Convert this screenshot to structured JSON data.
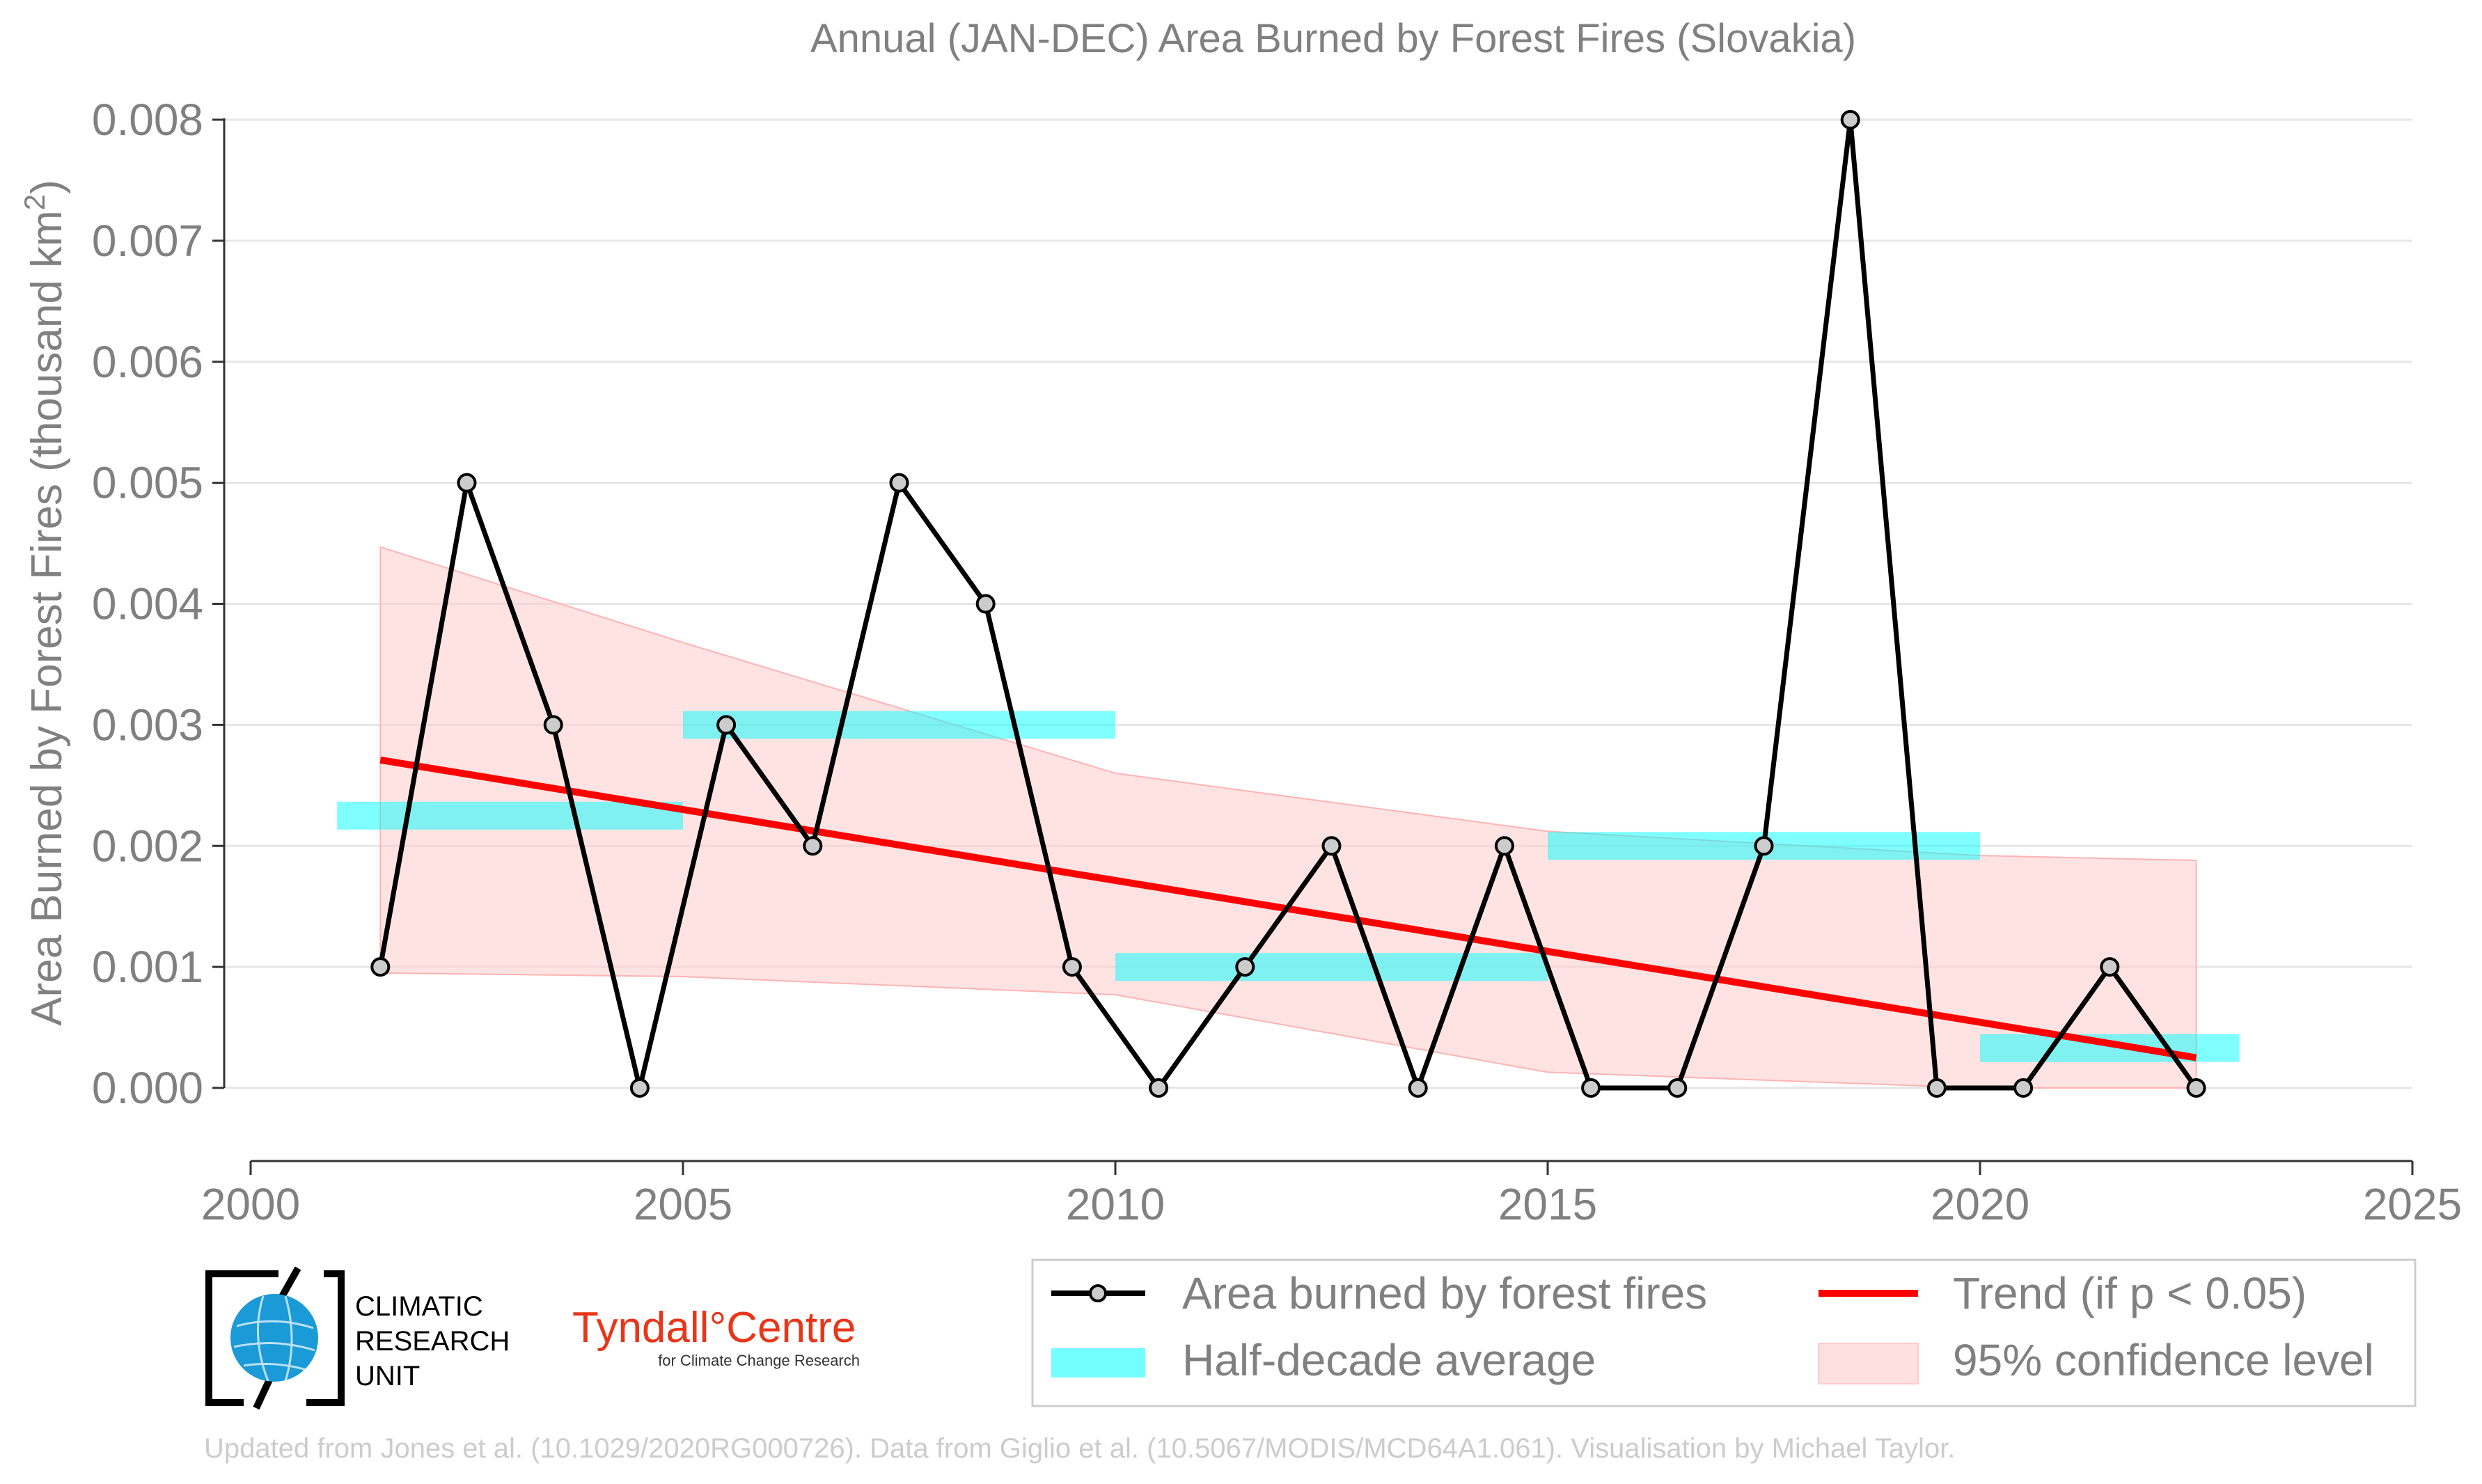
{
  "chart_data": {
    "type": "line",
    "title": "Annual (JAN-DEC) Area Burned by Forest Fires (Slovakia)",
    "ylabel_main": "Area Burned by Forest Fires (thousand km",
    "ylabel_sup": "2",
    "ylabel_end": ")",
    "xlim": [
      2000,
      2025
    ],
    "ylim": [
      0,
      0.008
    ],
    "x_ticks": [
      2000,
      2005,
      2010,
      2015,
      2020,
      2025
    ],
    "x_tick_labels": [
      "2000",
      "2005",
      "2010",
      "2015",
      "2020",
      "2025"
    ],
    "y_ticks": [
      0,
      0.001,
      0.002,
      0.003,
      0.004,
      0.005,
      0.006,
      0.007,
      0.008
    ],
    "y_tick_labels": [
      "0.000",
      "0.001",
      "0.002",
      "0.003",
      "0.004",
      "0.005",
      "0.006",
      "0.007",
      "0.008"
    ],
    "grid": "horizontal",
    "series": [
      {
        "name": "Area burned by forest fires",
        "color": "#000000",
        "marker_fill": "#cccccc",
        "x": [
          2001.5,
          2002.5,
          2003.5,
          2004.5,
          2005.5,
          2006.5,
          2007.5,
          2008.5,
          2009.5,
          2010.5,
          2011.5,
          2012.5,
          2013.5,
          2014.5,
          2015.5,
          2016.5,
          2017.5,
          2018.5,
          2019.5,
          2020.5,
          2021.5,
          2022.5
        ],
        "y": [
          0.001,
          0.005,
          0.003,
          0.0,
          0.003,
          0.002,
          0.005,
          0.004,
          0.001,
          0.0,
          0.001,
          0.002,
          0.0,
          0.002,
          0.0,
          0.0,
          0.002,
          0.008,
          0.0,
          0.0,
          0.001,
          0.0
        ]
      }
    ],
    "half_decade_average": {
      "name": "Half-decade average",
      "color": "#00ffff",
      "segments": [
        {
          "x0": 2001.0,
          "x1": 2005.0,
          "y": 0.00225
        },
        {
          "x0": 2005.0,
          "x1": 2010.0,
          "y": 0.003
        },
        {
          "x0": 2010.0,
          "x1": 2015.0,
          "y": 0.001
        },
        {
          "x0": 2015.0,
          "x1": 2020.0,
          "y": 0.002
        },
        {
          "x0": 2020.0,
          "x1": 2023.0,
          "y": 0.00033
        }
      ]
    },
    "trend": {
      "name": "Trend (if p < 0.05)",
      "color": "#ff0000",
      "x": [
        2001.5,
        2022.5
      ],
      "y": [
        0.00271,
        0.00025
      ]
    },
    "confidence": {
      "name": "95% confidence level",
      "color": "#ff9999",
      "x": [
        2001.5,
        2005.0,
        2010.0,
        2015.0,
        2020.0,
        2022.5
      ],
      "upper": [
        0.00447,
        0.00368,
        0.0026,
        0.00212,
        0.00192,
        0.00188
      ],
      "lower": [
        0.00095,
        0.00092,
        0.00077,
        0.00013,
        0.0,
        0.0
      ]
    },
    "legend_position": "bottom-right"
  },
  "footer": "Updated from Jones et al. (10.1029/2020RG000726). Data from Giglio et al. (10.5067/MODIS/MCD64A1.061). Visualisation by Michael Taylor.",
  "logos": {
    "cru_line1": "CLIMATIC",
    "cru_line2": "RESEARCH",
    "cru_line3": "UNIT",
    "tyndall_name": "Tyndall°Centre",
    "tyndall_sub": "for Climate Change Research"
  }
}
